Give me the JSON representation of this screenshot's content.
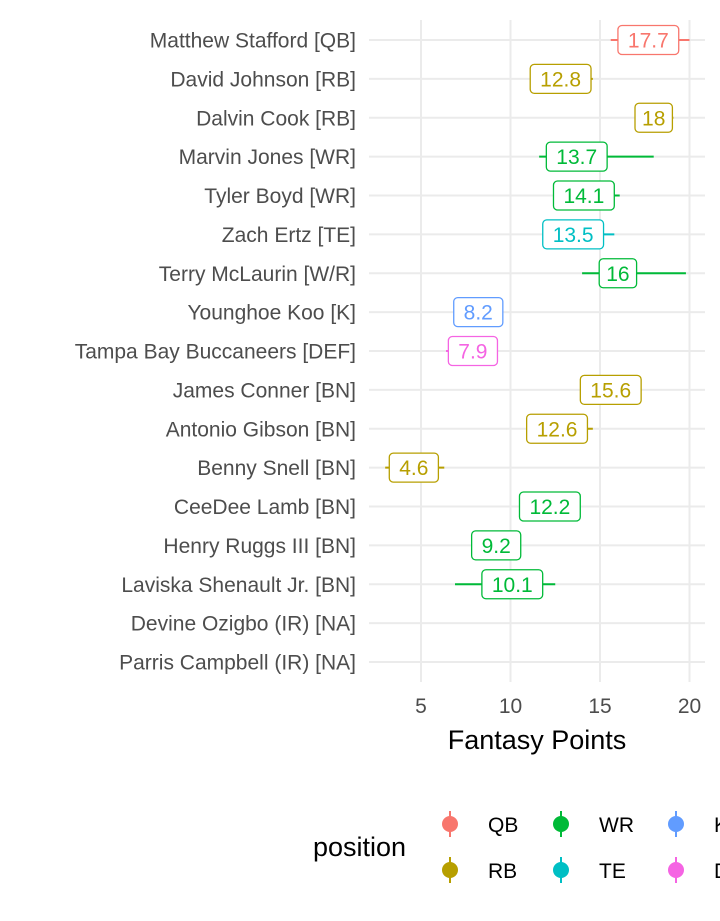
{
  "chart_data": {
    "type": "pointrange",
    "xlabel": "Fantasy Points",
    "xlim": [
      2.2,
      20.8
    ],
    "xticks": [
      5,
      10,
      15,
      20
    ],
    "grid": true,
    "legend": {
      "title": "position",
      "placement": "bottom",
      "entries": [
        {
          "label": "QB",
          "color": "#F8766D"
        },
        {
          "label": "WR",
          "color": "#00BA38"
        },
        {
          "label": "K",
          "color": "#619CFF"
        },
        {
          "label": "RB",
          "color": "#B79F00"
        },
        {
          "label": "TE",
          "color": "#00BFC4"
        },
        {
          "label": "DEF",
          "color": "#F564E3"
        }
      ]
    },
    "players": [
      {
        "name": "Matthew Stafford [QB]",
        "position": "QB",
        "value": 17.7,
        "low": 15.6,
        "high": 20.0,
        "label": "17.7"
      },
      {
        "name": "David Johnson [RB]",
        "position": "RB",
        "value": 12.8,
        "low": 11.1,
        "high": 14.6,
        "label": "12.8"
      },
      {
        "name": "Dalvin Cook [RB]",
        "position": "RB",
        "value": 18.0,
        "low": 17.0,
        "high": 19.1,
        "label": "18"
      },
      {
        "name": "Marvin Jones [WR]",
        "position": "WR",
        "value": 13.7,
        "low": 11.6,
        "high": 18.0,
        "label": "13.7"
      },
      {
        "name": "Tyler Boyd [WR]",
        "position": "WR",
        "value": 14.1,
        "low": 12.9,
        "high": 16.1,
        "label": "14.1"
      },
      {
        "name": "Zach Ertz [TE]",
        "position": "TE",
        "value": 13.5,
        "low": 11.9,
        "high": 15.8,
        "label": "13.5"
      },
      {
        "name": "Terry McLaurin [W/R]",
        "position": "WR",
        "value": 16.0,
        "low": 14.0,
        "high": 19.8,
        "label": "16"
      },
      {
        "name": "Younghoe Koo [K]",
        "position": "K",
        "value": 8.2,
        "low": 7.5,
        "high": 8.9,
        "label": "8.2"
      },
      {
        "name": "Tampa Bay Buccaneers [DEF]",
        "position": "DEF",
        "value": 7.9,
        "low": 6.4,
        "high": 9.3,
        "label": "7.9"
      },
      {
        "name": "James Conner [BN]",
        "position": "RB",
        "value": 15.6,
        "low": 14.6,
        "high": 16.7,
        "label": "15.6"
      },
      {
        "name": "Antonio Gibson [BN]",
        "position": "RB",
        "value": 12.6,
        "low": 11.0,
        "high": 14.6,
        "label": "12.6"
      },
      {
        "name": "Benny Snell [BN]",
        "position": "RB",
        "value": 4.6,
        "low": 3.0,
        "high": 6.3,
        "label": "4.6"
      },
      {
        "name": "CeeDee Lamb [BN]",
        "position": "WR",
        "value": 12.2,
        "low": 11.2,
        "high": 13.3,
        "label": "12.2"
      },
      {
        "name": "Henry Ruggs III [BN]",
        "position": "WR",
        "value": 9.2,
        "low": 8.4,
        "high": 9.9,
        "label": "9.2"
      },
      {
        "name": "Laviska Shenault Jr. [BN]",
        "position": "WR",
        "value": 10.1,
        "low": 6.9,
        "high": 12.5,
        "label": "10.1"
      },
      {
        "name": "Devine Ozigbo (IR) [NA]",
        "position": null,
        "value": null,
        "low": null,
        "high": null,
        "label": null
      },
      {
        "name": "Parris Campbell (IR) [NA]",
        "position": null,
        "value": null,
        "low": null,
        "high": null,
        "label": null
      }
    ]
  }
}
